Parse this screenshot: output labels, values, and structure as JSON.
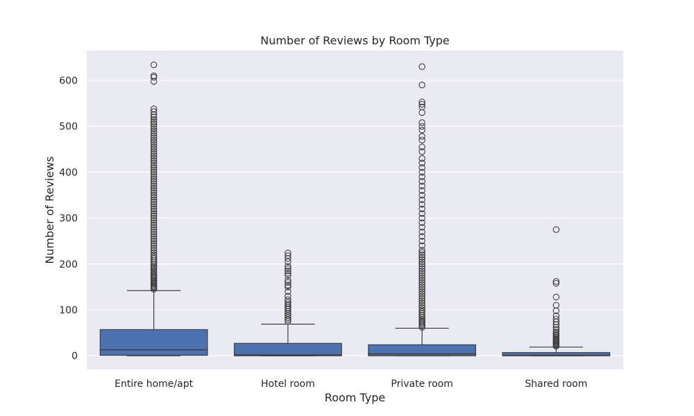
{
  "chart_data": {
    "type": "box",
    "title": "Number of Reviews by Room Type",
    "xlabel": "Room Type",
    "ylabel": "Number of Reviews",
    "ylim": [
      -30,
      665
    ],
    "yticks": [
      0,
      100,
      200,
      300,
      400,
      500,
      600
    ],
    "grid": true,
    "colors": {
      "box": "#4c72b0",
      "line": "#3d3d3d",
      "background": "#eaeaf2",
      "grid": "#ffffff"
    },
    "categories": [
      "Entire home/apt",
      "Hotel room",
      "Private room",
      "Shared room"
    ],
    "boxes": [
      {
        "category": "Entire home/apt",
        "whisker_low": 0,
        "q1": 1,
        "median": 13,
        "q3": 57,
        "whisker_high": 142,
        "outliers": [
          145,
          148,
          150,
          152,
          155,
          158,
          160,
          163,
          165,
          168,
          170,
          173,
          176,
          180,
          183,
          186,
          190,
          193,
          196,
          200,
          204,
          208,
          212,
          216,
          220,
          225,
          230,
          235,
          240,
          245,
          250,
          255,
          260,
          265,
          270,
          275,
          280,
          285,
          290,
          295,
          300,
          305,
          310,
          315,
          320,
          325,
          330,
          335,
          340,
          345,
          350,
          355,
          360,
          365,
          370,
          375,
          380,
          385,
          390,
          395,
          400,
          405,
          410,
          415,
          420,
          425,
          430,
          435,
          440,
          445,
          450,
          455,
          460,
          465,
          470,
          475,
          480,
          485,
          490,
          495,
          500,
          505,
          510,
          515,
          520,
          525,
          532,
          538,
          598,
          607,
          610,
          634
        ]
      },
      {
        "category": "Hotel room",
        "whisker_low": 0,
        "q1": 0,
        "median": 2,
        "q3": 27,
        "whisker_high": 69,
        "outliers": [
          75,
          79,
          83,
          88,
          92,
          97,
          101,
          105,
          109,
          113,
          117,
          122,
          130,
          140,
          150,
          154,
          160,
          165,
          175,
          180,
          185,
          190,
          195,
          205,
          212,
          218,
          224
        ]
      },
      {
        "category": "Private room",
        "whisker_low": 0,
        "q1": 0,
        "median": 4,
        "q3": 24,
        "whisker_high": 60,
        "outliers": [
          62,
          65,
          68,
          71,
          74,
          77,
          80,
          84,
          88,
          92,
          96,
          100,
          105,
          110,
          115,
          120,
          125,
          130,
          135,
          140,
          145,
          150,
          155,
          160,
          165,
          170,
          175,
          180,
          185,
          190,
          195,
          200,
          205,
          210,
          215,
          220,
          225,
          230,
          240,
          250,
          260,
          270,
          280,
          290,
          300,
          310,
          320,
          330,
          340,
          350,
          360,
          370,
          380,
          390,
          400,
          410,
          420,
          430,
          445,
          455,
          470,
          478,
          492,
          500,
          508,
          530,
          542,
          548,
          553,
          590,
          630
        ]
      },
      {
        "category": "Shared room",
        "whisker_low": 0,
        "q1": 0,
        "median": 1,
        "q3": 7,
        "whisker_high": 19,
        "outliers": [
          21,
          23,
          25,
          27,
          29,
          31,
          33,
          35,
          37,
          40,
          43,
          46,
          49,
          52,
          57,
          62,
          68,
          74,
          80,
          87,
          98,
          110,
          128,
          158,
          162,
          275
        ]
      }
    ]
  }
}
